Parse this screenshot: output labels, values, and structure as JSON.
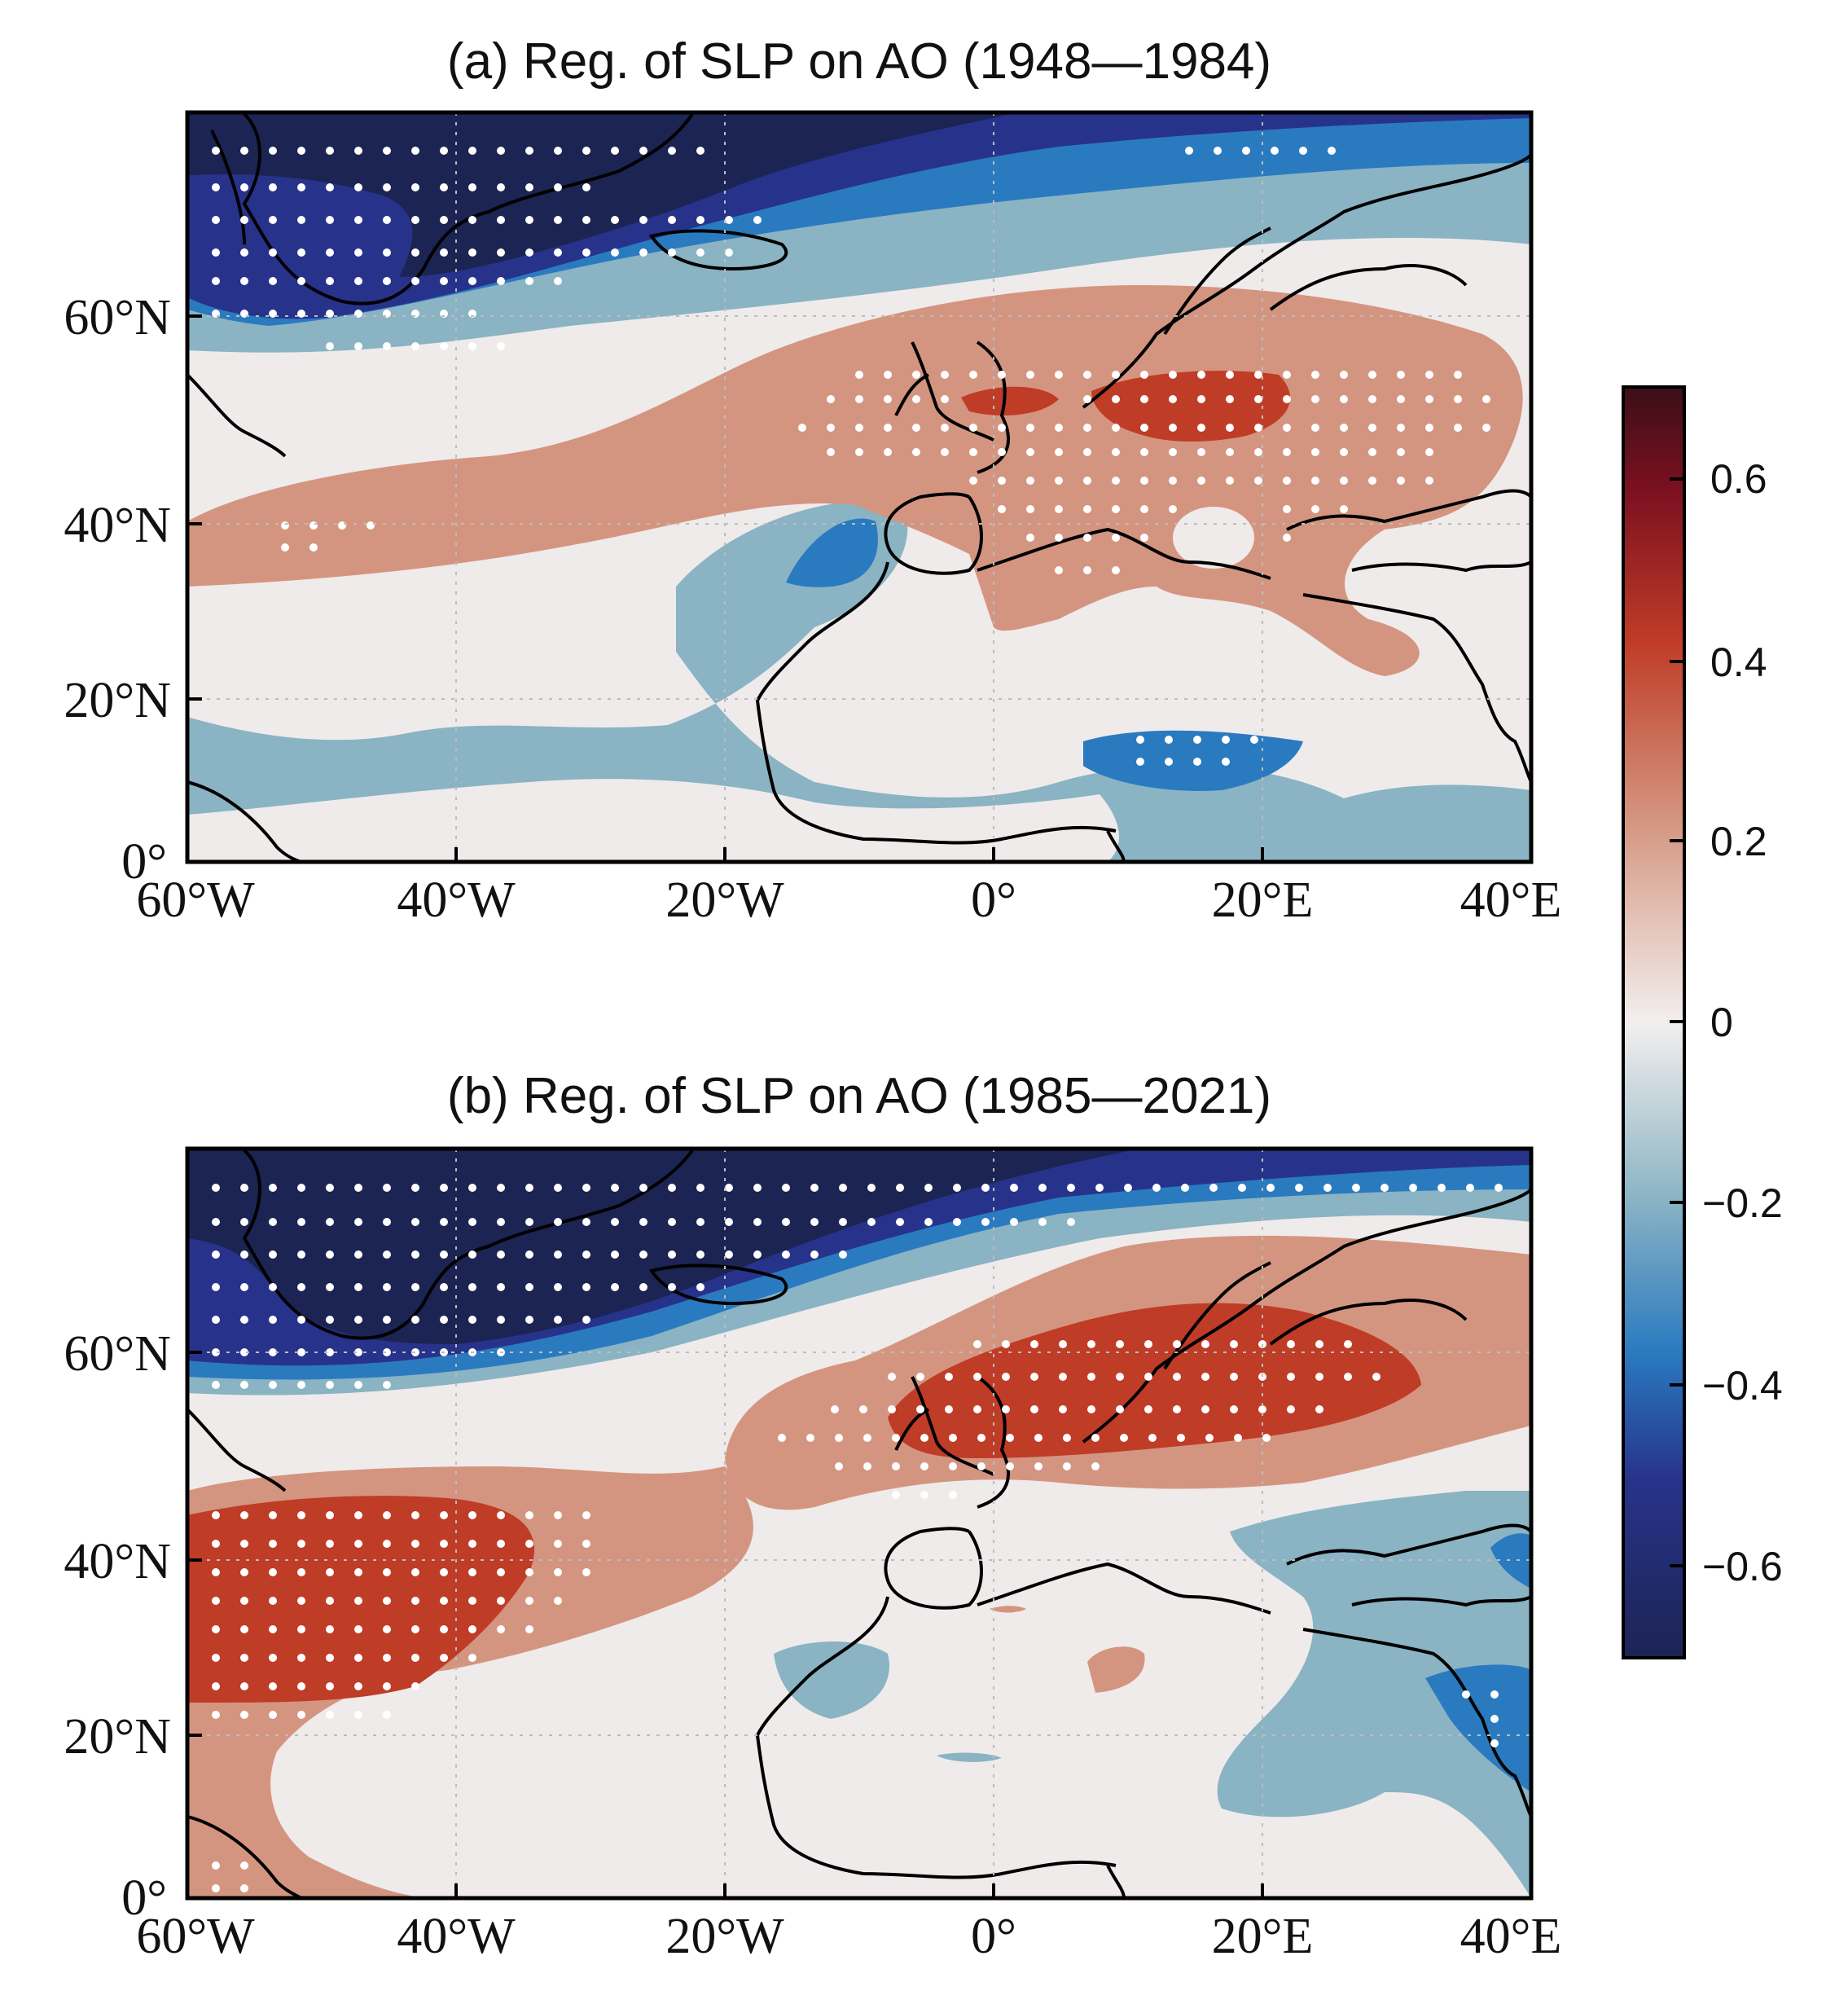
{
  "panels": [
    {
      "id": "a",
      "title": "(a) Reg. of SLP on AO (1948—1984)"
    },
    {
      "id": "b",
      "title": "(b) Reg. of SLP on AO (1985—2021)"
    }
  ],
  "axes": {
    "lon_ticks": [
      "60°W",
      "40°W",
      "20°W",
      "0°",
      "20°E",
      "40°E"
    ],
    "lat_ticks": [
      "0°",
      "20°N",
      "40°N",
      "60°N"
    ],
    "lon_range": [
      -60,
      40
    ],
    "lat_range": [
      0,
      82
    ]
  },
  "colorbar": {
    "labels": [
      "0.6",
      "0.4",
      "0.2",
      "0",
      "−0.2",
      "−0.4",
      "−0.6"
    ],
    "range": [
      -0.7,
      0.7
    ]
  },
  "colors": {
    "strong_neg": "#1c2454",
    "neg2": "#27338a",
    "neg3": "#2a7ac0",
    "weak_neg": "#8ab3c4",
    "neutral": "#efebea",
    "weak_pos": "#d49580",
    "strong_pos": "#bf3c27",
    "coast": "#000000",
    "stipple": "#ffffff"
  }
}
